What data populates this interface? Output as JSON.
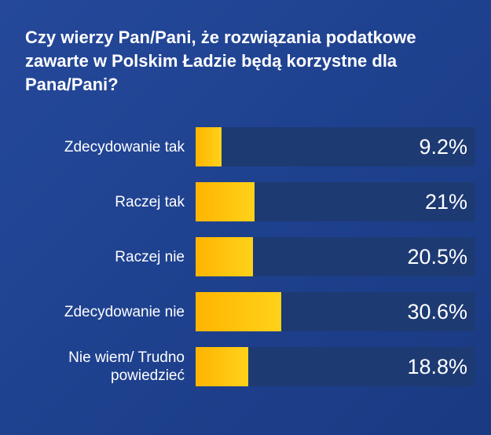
{
  "chart_data": {
    "type": "bar",
    "orientation": "horizontal",
    "title": "Czy wierzy Pan/Pani, że rozwiązania podatkowe zawarte w Polskim Ładzie będą korzystne dla Pana/Pani?",
    "categories": [
      "Zdecydowanie tak",
      "Raczej tak",
      "Raczej nie",
      "Zdecydowanie nie",
      "Nie wiem/ Trudno\npowiedzieć"
    ],
    "values": [
      9.2,
      21,
      20.5,
      30.6,
      18.8
    ],
    "value_labels": [
      "9.2%",
      "21%",
      "20.5%",
      "30.6%",
      "18.8%"
    ],
    "xlim": [
      0,
      100
    ],
    "grid": false,
    "legend": "none",
    "colors": {
      "bar": "#ffc400",
      "track": "#1d3a73",
      "background": "#1f4290"
    }
  }
}
